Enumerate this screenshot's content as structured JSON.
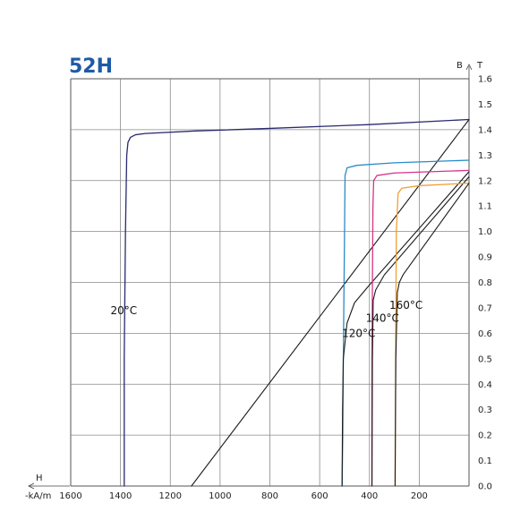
{
  "chart_data": {
    "type": "line",
    "title": "52H",
    "title_color": "#1f5aa6",
    "x_axis": {
      "label": "H",
      "unit": "-kA/m",
      "range": [
        1600,
        0
      ],
      "ticks": [
        1600,
        1400,
        1200,
        1000,
        800,
        600,
        400,
        200
      ],
      "reversed": true
    },
    "y_axis": {
      "label_left": "B",
      "label_right": "T",
      "range": [
        0,
        1.6
      ],
      "ticks": [
        "0.0",
        "0.1",
        "0.2",
        "0.3",
        "0.4",
        "0.5",
        "0.6",
        "0.7",
        "0.8",
        "0.9",
        "1.0",
        "1.1",
        "1.2",
        "1.3",
        "1.4",
        "1.5",
        "1.6"
      ],
      "position": "right"
    },
    "grid": true,
    "series": [
      {
        "name": "20°C",
        "color": "#2a2a6e",
        "kind": "J",
        "points": [
          [
            0,
            1.44
          ],
          [
            400,
            1.42
          ],
          [
            800,
            1.405
          ],
          [
            1100,
            1.395
          ],
          [
            1300,
            1.385
          ],
          [
            1340,
            1.38
          ],
          [
            1360,
            1.37
          ],
          [
            1370,
            1.35
          ],
          [
            1375,
            1.3
          ],
          [
            1380,
            1.0
          ],
          [
            1385,
            0.5
          ],
          [
            1385,
            0
          ]
        ]
      },
      {
        "name": "20°C",
        "color": "#1a1a1a",
        "kind": "B",
        "points": [
          [
            0,
            1.44
          ],
          [
            1115,
            0
          ]
        ]
      },
      {
        "name": "120°C",
        "color": "#2a8ac8",
        "kind": "J",
        "points": [
          [
            0,
            1.28
          ],
          [
            300,
            1.27
          ],
          [
            450,
            1.26
          ],
          [
            490,
            1.25
          ],
          [
            498,
            1.22
          ],
          [
            500,
            1.0
          ],
          [
            505,
            0.5
          ],
          [
            507,
            0.2
          ],
          [
            510,
            0
          ]
        ]
      },
      {
        "name": "120°C",
        "color": "#1a1a1a",
        "kind": "B",
        "points": [
          [
            0,
            1.235
          ],
          [
            400,
            0.79
          ],
          [
            460,
            0.72
          ],
          [
            490,
            0.64
          ],
          [
            505,
            0.5
          ],
          [
            508,
            0.3
          ],
          [
            510,
            0
          ]
        ]
      },
      {
        "name": "140°C",
        "color": "#d63384",
        "kind": "J",
        "points": [
          [
            0,
            1.24
          ],
          [
            300,
            1.23
          ],
          [
            370,
            1.22
          ],
          [
            383,
            1.2
          ],
          [
            386,
            1.1
          ],
          [
            388,
            0.8
          ],
          [
            390,
            0.5
          ],
          [
            390,
            0
          ]
        ]
      },
      {
        "name": "140°C",
        "color": "#1a1a1a",
        "kind": "B",
        "points": [
          [
            0,
            1.215
          ],
          [
            340,
            0.83
          ],
          [
            375,
            0.77
          ],
          [
            385,
            0.73
          ],
          [
            388,
            0.5
          ],
          [
            390,
            0
          ]
        ]
      },
      {
        "name": "160°C",
        "color": "#f0a030",
        "kind": "J",
        "points": [
          [
            0,
            1.19
          ],
          [
            200,
            1.18
          ],
          [
            270,
            1.17
          ],
          [
            285,
            1.15
          ],
          [
            292,
            1.0
          ],
          [
            295,
            0.5
          ],
          [
            297,
            0
          ]
        ]
      },
      {
        "name": "160°C",
        "color": "#1a1a1a",
        "kind": "B",
        "points": [
          [
            0,
            1.19
          ],
          [
            265,
            0.83
          ],
          [
            280,
            0.8
          ],
          [
            288,
            0.76
          ],
          [
            294,
            0.5
          ],
          [
            297,
            0
          ]
        ]
      }
    ],
    "annotations": [
      {
        "text": "20°C",
        "x": 1440,
        "y": 0.69
      },
      {
        "text": "120°C",
        "x": 510,
        "y": 0.6
      },
      {
        "text": "140°C",
        "x": 415,
        "y": 0.66
      },
      {
        "text": "160°C",
        "x": 320,
        "y": 0.71
      }
    ]
  }
}
